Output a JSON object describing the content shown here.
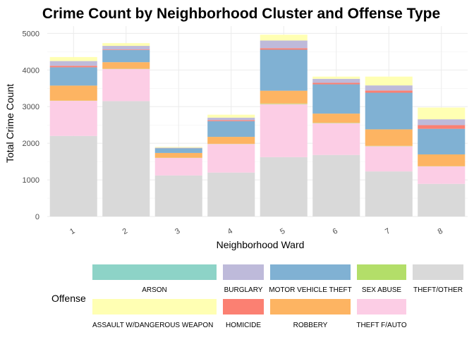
{
  "chart_data": {
    "type": "bar",
    "stacked": true,
    "title": "Crime Count by Neighborhood Cluster and Offense Type",
    "xlabel": "Neighborhood Ward",
    "ylabel": "Total Crime Count",
    "ylim": [
      0,
      5200
    ],
    "yticks": [
      0,
      1000,
      2000,
      3000,
      4000,
      5000
    ],
    "grid": true,
    "legend_title": "Offense",
    "legend_position": "bottom",
    "categories": [
      "1",
      "2",
      "3",
      "4",
      "5",
      "6",
      "7",
      "8"
    ],
    "series": [
      {
        "name": "THEFT/OTHER",
        "color": "#d9d9d9",
        "values": [
          2200,
          3150,
          1120,
          1200,
          1620,
          1680,
          1230,
          890
        ]
      },
      {
        "name": "THEFT F/AUTO",
        "color": "#fccde5",
        "values": [
          960,
          880,
          480,
          780,
          1450,
          870,
          690,
          480
        ]
      },
      {
        "name": "SEX ABUSE",
        "color": "#b3de69",
        "values": [
          5,
          5,
          5,
          5,
          15,
          10,
          10,
          5
        ]
      },
      {
        "name": "ROBBERY",
        "color": "#fdb462",
        "values": [
          410,
          180,
          130,
          190,
          350,
          250,
          450,
          320
        ]
      },
      {
        "name": "MOTOR VEHICLE THEFT",
        "color": "#80b1d3",
        "values": [
          500,
          330,
          130,
          430,
          1120,
          800,
          1000,
          700
        ]
      },
      {
        "name": "HOMICIDE",
        "color": "#fb8072",
        "values": [
          40,
          15,
          5,
          25,
          40,
          40,
          60,
          100
        ]
      },
      {
        "name": "BURGLARY",
        "color": "#bebada",
        "values": [
          130,
          100,
          10,
          70,
          210,
          110,
          140,
          160
        ]
      },
      {
        "name": "ASSAULT W/DANGEROUS WEAPON",
        "color": "#ffffb3",
        "values": [
          110,
          75,
          20,
          80,
          160,
          60,
          240,
          320
        ]
      },
      {
        "name": "ARSON",
        "color": "#8dd3c7",
        "values": [
          0,
          0,
          0,
          0,
          0,
          0,
          0,
          0
        ]
      }
    ]
  },
  "legend_rows": [
    [
      "ARSON",
      "BURGLARY",
      "MOTOR VEHICLE THEFT",
      "SEX ABUSE",
      "THEFT/OTHER"
    ],
    [
      "ASSAULT W/DANGEROUS WEAPON",
      "HOMICIDE",
      "ROBBERY",
      "THEFT F/AUTO"
    ]
  ]
}
